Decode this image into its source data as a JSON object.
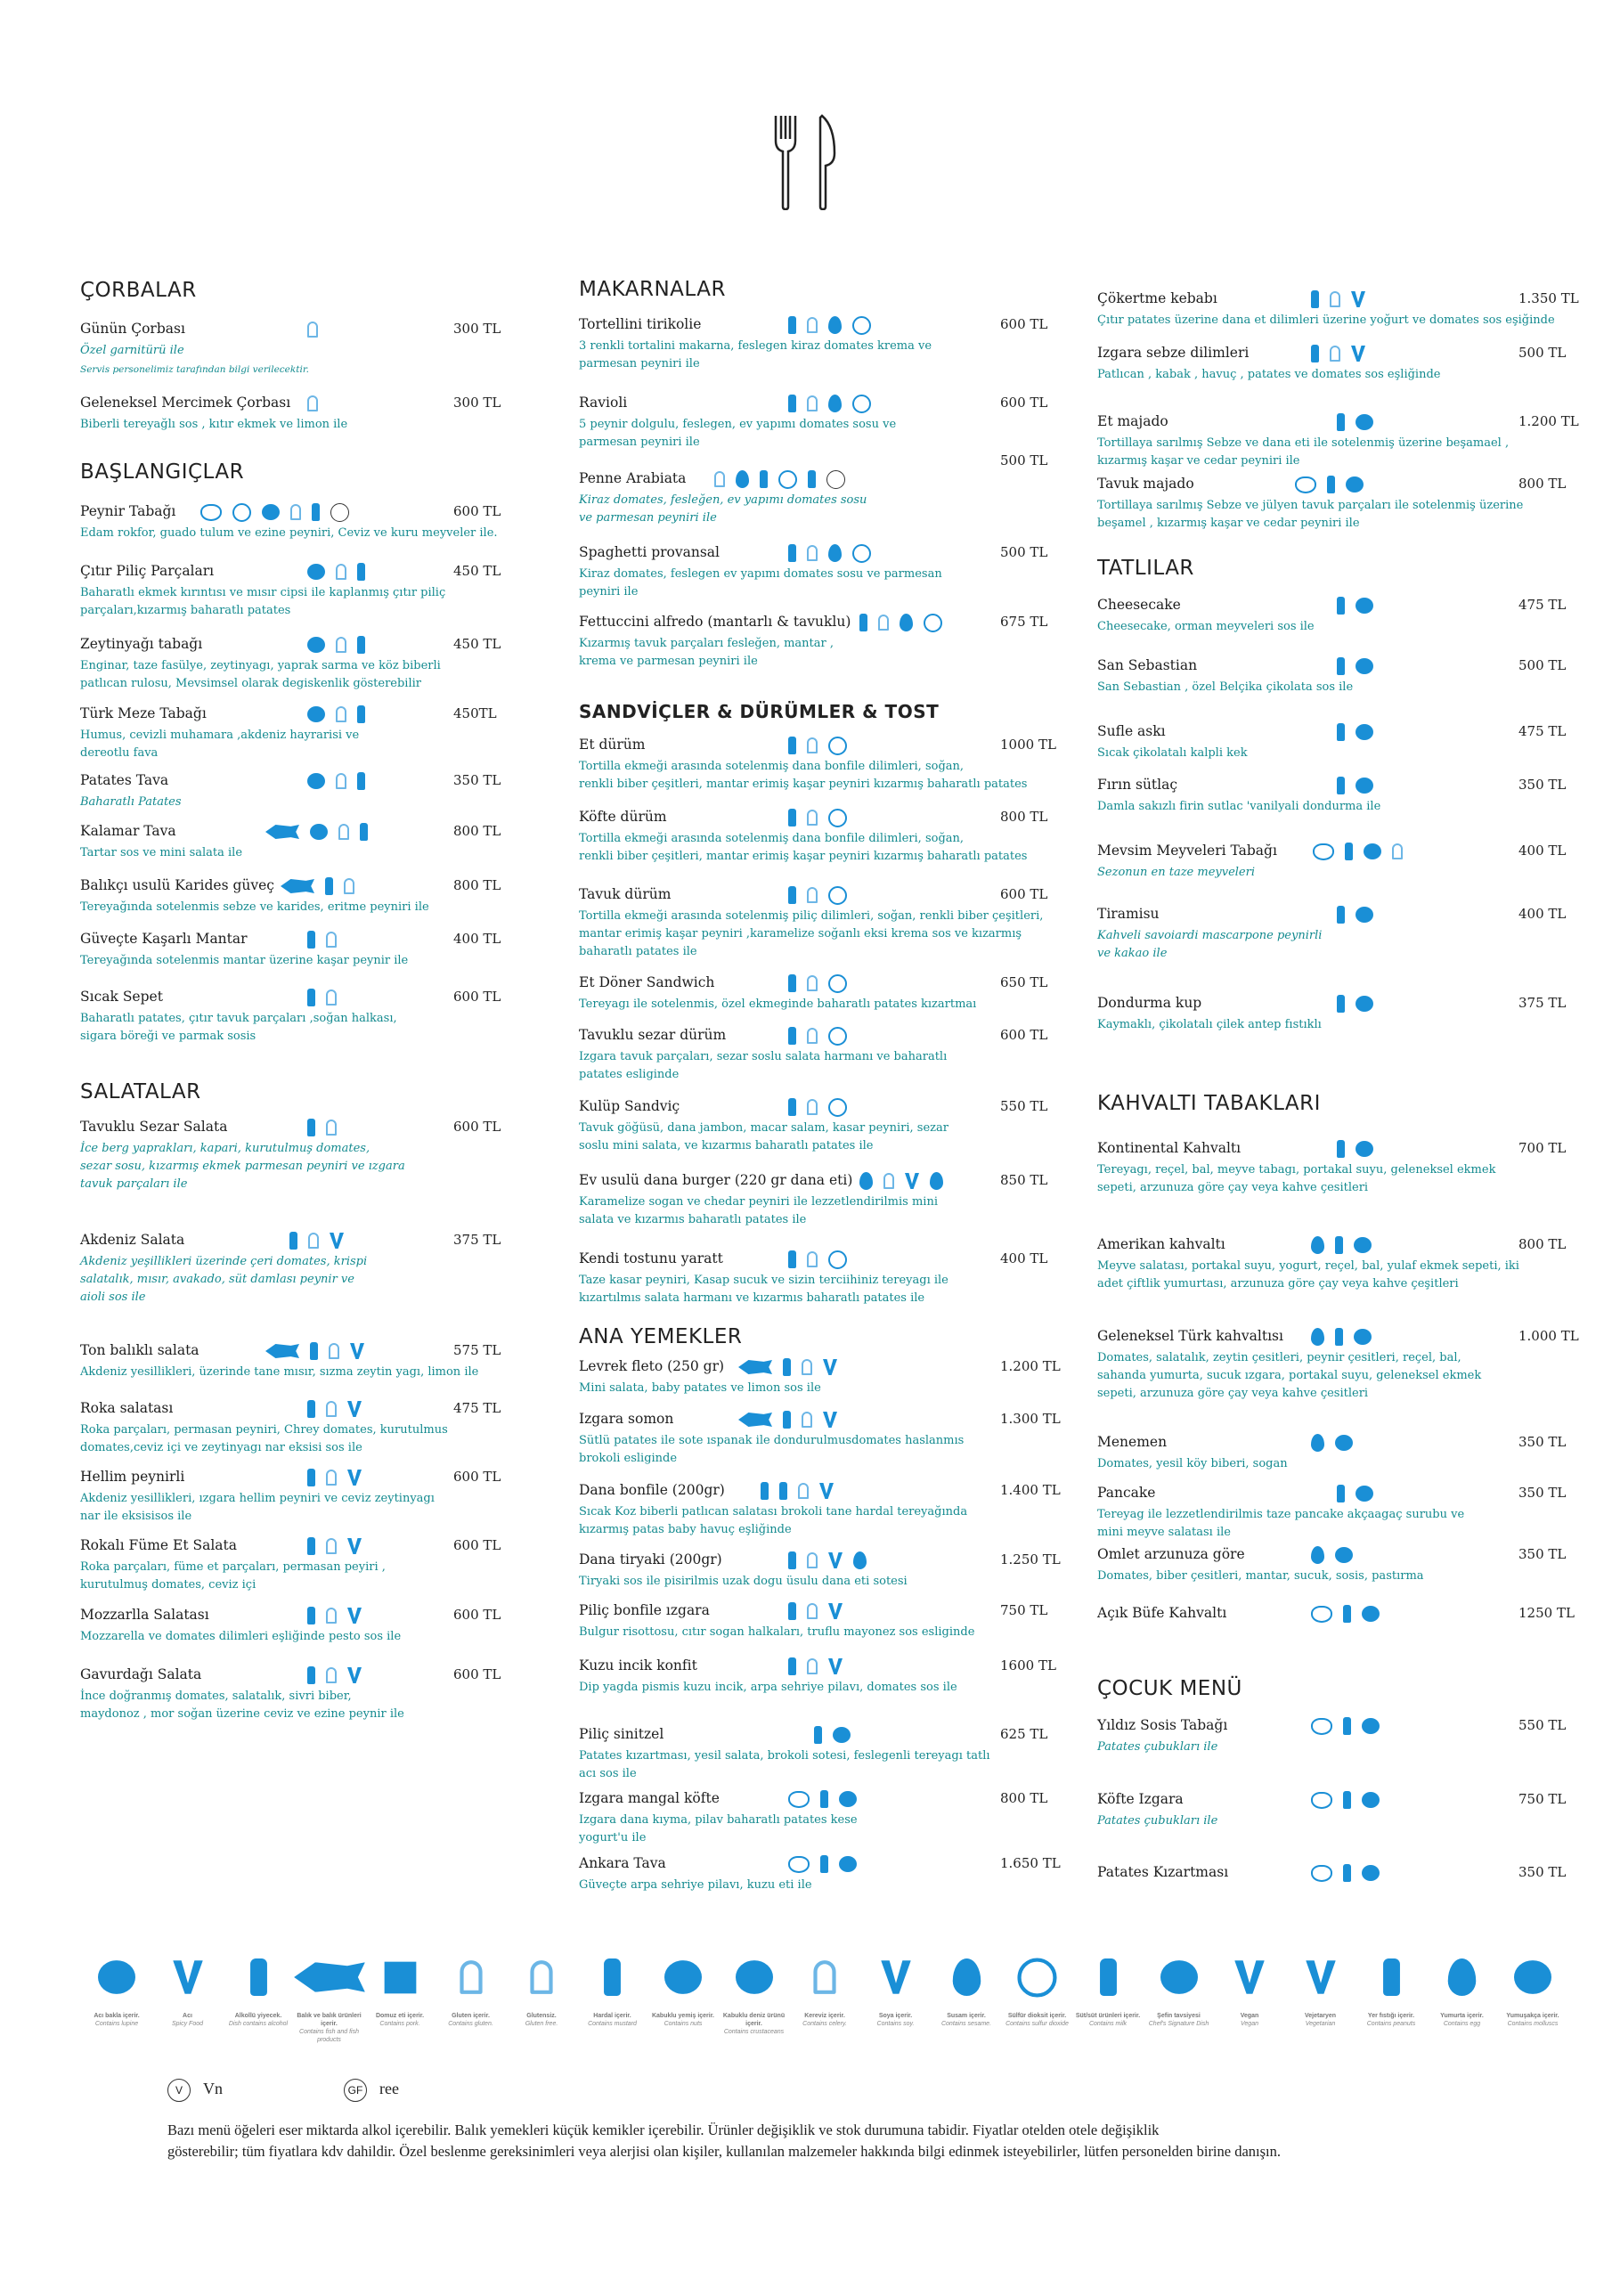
{
  "columns": [
    {
      "sections": [
        {
          "title": "ÇORBALAR",
          "items": [
            {
              "name": "Günün Çorbası",
              "price": "300 TL",
              "desc": "Özel garnitürü ile",
              "note": "Servis personelimiz tarafından bilgi verilecektir."
            },
            {
              "name": "Geleneksel Mercimek Çorbası",
              "price": "300 TL",
              "desc": "Biberli tereyağlı sos , kıtır ekmek ve limon ile"
            }
          ]
        },
        {
          "title": "BAŞLANGIÇLAR",
          "items": [
            {
              "name": "Peynir Tabağı",
              "price": "600 TL",
              "desc": "Edam rokfor, guado tulum ve ezine peyniri, Ceviz ve kuru meyveler ile."
            },
            {
              "name": "Çıtır Piliç Parçaları",
              "price": "450 TL",
              "desc": "Baharatlı ekmek kırıntısı ve mısır cipsi ile kaplanmış çıtır piliç\nparçaları,kızarmış baharatlı patates"
            },
            {
              "name": "Zeytinyağı tabağı",
              "price": "450 TL",
              "desc": "Enginar, taze fasülye, zeytinyagı, yaprak sarma ve köz biberli\npatlıcan rulosu, Mevsimsel olarak degiskenlik gösterebilir"
            },
            {
              "name": "Türk Meze Tabağı",
              "price": "450TL",
              "desc": "Humus, cevizli muhamara ,akdeniz hayrarisi ve\ndereotlu fava"
            },
            {
              "name": "Patates Tava",
              "price": "350 TL",
              "desc": "Baharatlı Patates"
            },
            {
              "name": "Kalamar Tava",
              "price": "800 TL",
              "desc": "Tartar sos ve mini salata ile"
            },
            {
              "name": "Balıkçı usulü Karides güveç",
              "price": "800 TL",
              "desc": "Tereyağında sotelenmis sebze ve karides, eritme peyniri ile"
            },
            {
              "name": "Güveçte Kaşarlı Mantar",
              "price": "400 TL",
              "desc": "Tereyağında sotelenmis mantar üzerine kaşar peynir ile"
            },
            {
              "name": "Sıcak Sepet",
              "price": "600 TL",
              "desc": "Baharatlı patates, çıtır tavuk parçaları ,soğan halkası,\nsigara böreği ve parmak sosis"
            }
          ]
        },
        {
          "title": "SALATALAR",
          "items": [
            {
              "name": "Tavuklu Sezar Salata",
              "price": "600 TL",
              "desc": "İce berg yaprakları, kapari, kurutulmuş domates,\nsezar sosu, kızarmış ekmek parmesan peyniri ve ızgara\ntavuk parçaları ile"
            },
            {
              "name": "Akdeniz Salata",
              "price": "375 TL",
              "desc": "Akdeniz yeşillikleri üzerinde çeri domates, krispi\nsalatalık, mısır, avakado, süt damlası peynir ve\naioli sos ile"
            },
            {
              "name": "Ton balıklı salata",
              "price": "575 TL",
              "desc": "Akdeniz yesillikleri, üzerinde tane mısır, sızma zeytin yagı, limon ile"
            },
            {
              "name": "Roka salatası",
              "price": "475 TL",
              "desc": "Roka parçaları, permasan peyniri, Chrey domates, kurutulmus\ndomates,ceviz içi ve zeytinyagı nar eksisi sos ile"
            },
            {
              "name": "Hellim peynirli",
              "price": "600 TL",
              "desc": "Akdeniz yesillikleri, ızgara hellim peyniri ve ceviz zeytinyagı\nnar ile eksisisos ile"
            },
            {
              "name": "Rokalı Füme Et Salata",
              "price": "600 TL",
              "desc": "Roka parçaları, füme et parçaları, permasan peyiri ,\nkurutulmuş domates, ceviz içi"
            },
            {
              "name": "Mozzarlla Salatası",
              "price": "600 TL",
              "desc": "Mozzarella ve domates dilimleri eşliğinde pesto sos ile"
            },
            {
              "name": "Gavurdağı Salata",
              "price": "600 TL",
              "desc": "İnce doğranmış domates, salatalık, sivri biber,\nmaydonoz , mor soğan üzerine ceviz ve ezine peynir ile"
            }
          ]
        }
      ]
    },
    {
      "sections": [
        {
          "title": "MAKARNALAR",
          "items": [
            {
              "name": "Tortellini tirikolie",
              "price": "600 TL",
              "desc": "3 renkli tortalini makarna, feslegen kiraz domates krema ve\nparmesan peyniri ile"
            },
            {
              "name": "Ravioli",
              "price": "600 TL",
              "desc": "5 peynir dolgulu, feslegen, ev yapımı domates sosu ve\nparmesan peyniri ile"
            },
            {
              "name": "Penne Arabiata",
              "price": "500 TL",
              "desc": "Kiraz domates, fesleğen, ev yapımı domates sosu\nve parmesan peyniri ile"
            },
            {
              "name": "Spaghetti provansal",
              "price": "500 TL",
              "desc": "Kiraz domates, feslegen ev yapımı domates sosu ve parmesan\npeyniri ile"
            },
            {
              "name": "Fettuccini alfredo (mantarlı & tavuklu)",
              "price": "675 TL",
              "desc": "Kızarmış tavuk parçaları fesleğen, mantar ,\nkrema ve parmesan peyniri ile"
            }
          ]
        },
        {
          "title": "SANDVİÇLER & DÜRÜMLER & TOST",
          "items": [
            {
              "name": "Et dürüm",
              "price": "1000 TL",
              "desc": "Tortilla ekmeği arasında sotelenmiş dana bonfile dilimleri, soğan,\nrenkli biber çeşitleri, mantar erimiş kaşar peyniri kızarmış  baharatlı patates"
            },
            {
              "name": "Köfte  dürüm",
              "price": "800 TL",
              "desc": "Tortilla ekmeği arasında sotelenmiş dana bonfile dilimleri, soğan,\n renkli biber çeşitleri, mantar erimiş kaşar peyniri kızarmış  baharatlı patates"
            },
            {
              "name": "Tavuk  dürüm",
              "price": "600 TL",
              "desc": "Tortilla ekmeği arasında sotelenmiş piliç dilimleri, soğan, renkli biber çeşitleri,\nmantar erimiş kaşar peyniri ,karamelize soğanlı eksi krema sos ve kızarmış\nbaharatlı patates ile"
            },
            {
              "name": "Et Döner Sandwich",
              "price": "650 TL",
              "desc": "Tereyagı ile sotelenmis, özel ekmeginde baharatlı patates kızartmaı"
            },
            {
              "name": "Tavuklu sezar dürüm",
              "price": "600 TL",
              "desc": "Izgara tavuk parçaları, sezar soslu salata harmanı ve baharatlı\npatates esliginde"
            },
            {
              "name": "Kulüp Sandviç",
              "price": "550 TL",
              "desc": "Tavuk göğüsü, dana jambon, macar salam, kasar peyniri, sezar\nsoslu mini salata, ve kızarmıs baharatlı patates ile"
            },
            {
              "name": "Ev usulü dana burger (220 gr dana eti)",
              "price": "850 TL",
              "desc": "Karamelize sogan ve chedar peyniri ile lezzetlendirilmis  mini\nsalata ve kızarmıs baharatlı patates ile"
            },
            {
              "name": "Kendi tostunu yaratt",
              "price": "400 TL",
              "desc": "Taze kasar peyniri, Kasap sucuk ve sizin terciihiniz tereyagı ile\nkızartılmıs salata harmanı ve kızarmıs baharatlı patates ile"
            }
          ]
        },
        {
          "title": "ANA YEMEKLER",
          "items": [
            {
              "name": "Levrek fleto (250 gr)",
              "price": "1.200 TL",
              "desc": "Mini salata, baby patates ve limon sos ile"
            },
            {
              "name": "Izgara somon",
              "price": "1.300 TL",
              "desc": "Sütlü patates ile sote ıspanak ile dondurulmusdomates haslanmıs\nbrokoli esliginde"
            },
            {
              "name": "Dana bonfile (200gr)",
              "price": "1.400 TL",
              "desc": "Sıcak Koz biberli patlıcan salatası  brokoli tane hardal tereyağında\nkızarmış patas baby havuç eşliğinde"
            },
            {
              "name": "Dana tiryaki (200gr)",
              "price": "1.250 TL",
              "desc": "Tiryaki sos ile pisirilmis uzak dogu üsulu dana eti sotesi"
            },
            {
              "name": "Piliç bonfile ızgara",
              "price": "750 TL",
              "desc": "Bulgur risottosu, cıtır sogan halkaları, truflu mayonez sos esliginde"
            },
            {
              "name": "Kuzu incik konfit",
              "price": "1600 TL",
              "desc": "Dip yagda pismis kuzu incik, arpa sehriye pilavı, domates sos ile"
            },
            {
              "name": "Piliç sinitzel",
              "price": "625 TL",
              "desc": "Patates kızartması, yesil salata, brokoli sotesi, feslegenli tereyagı tatlı\nacı sos ile"
            },
            {
              "name": "Izgara mangal köfte",
              "price": "800 TL",
              "desc": "Izgara dana kıyma, pilav baharatlı patates kese\nyogurt'u ile"
            },
            {
              "name": "Ankara Tava",
              "price": "1.650 TL",
              "desc": "Güveçte arpa sehriye pilavı, kuzu eti ile"
            }
          ]
        }
      ]
    },
    {
      "sections": [
        {
          "items": [
            {
              "name": "Çökertme kebabı",
              "price": "1.350 TL",
              "desc": "Çıtır patates üzerine dana et dilimleri üzerine yoğurt ve domates sos eşiğinde"
            },
            {
              "name": "Izgara sebze dilimleri",
              "price": "500 TL",
              "desc": "Patlıcan , kabak , havuç , patates ve domates sos eşliğinde"
            },
            {
              "name": "Et majado",
              "price": "1.200 TL",
              "desc": "Tortillaya sarılmış Sebze ve dana eti ile sotelenmiş üzerine beşamael ,\nkızarmış kaşar ve cedar peyniri ile"
            },
            {
              "name": "Tavuk  majado",
              "price": "800 TL",
              "desc": "Tortillaya sarılmış Sebze ve jülyen tavuk parçaları ile sotelenmiş üzerine\n beşamel , kızarmış kaşar ve cedar peyniri ile"
            }
          ]
        },
        {
          "title": "TATLILAR",
          "items": [
            {
              "name": "Cheesecake",
              "price": "475 TL",
              "desc": "Cheesecake, orman meyveleri sos ile"
            },
            {
              "name": "San Sebastian",
              "price": "500 TL",
              "desc": "San Sebastian , özel Belçika çikolata sos ile"
            },
            {
              "name": "Sufle askı",
              "price": "475 TL",
              "desc": "Sıcak çikolatalı kalpli kek"
            },
            {
              "name": "Fırın sütlaç",
              "price": "350 TL",
              "desc": "Damla sakızlı firin sutlac 'vanilyali  dondurma ile"
            },
            {
              "name": "Mevsim Meyveleri Tabağı",
              "price": "400 TL",
              "desc": "Sezonun en taze meyveleri"
            },
            {
              "name": "Tiramisu",
              "price": "400 TL",
              "desc": "Kahveli savoiardi mascarpone peynirli\nve kakao ile"
            },
            {
              "name": "Dondurma kup",
              "price": "375 TL",
              "desc": "Kaymaklı, çikolatalı çilek antep fıstıklı"
            }
          ]
        },
        {
          "title": "KAHVALTI TABAKLARI",
          "items": [
            {
              "name": "Kontinental Kahvaltı",
              "price": "700 TL",
              "desc": "Tereyagı, reçel, bal, meyve tabagı, portakal suyu, geleneksel ekmek\nsepeti, arzunuza göre çay veya kahve çesitleri"
            },
            {
              "name": "Amerikan kahvaltı",
              "price": "800 TL",
              "desc": "Meyve salatası, portakal suyu, yogurt, reçel, bal, yulaf ekmek sepeti, iki\nadet çiftlik yumurtası, arzunuza göre çay veya kahve çeşitleri"
            },
            {
              "name": "Geleneksel Türk kahvaltısı",
              "price": "1.000 TL",
              "desc": "Domates, salatalık, zeytin çesitleri, peynir çesitleri, reçel, bal,\nsahanda yumurta, sucuk ızgara, portakal suyu, geleneksel ekmek\nsepeti, arzunuza göre çay veya kahve çesitleri"
            },
            {
              "name": "Menemen",
              "price": "350 TL",
              "desc": "Domates, yesil köy biberi, sogan"
            },
            {
              "name": "Pancake",
              "price": "350 TL",
              "desc": "Tereyag ile lezzetlendirilmis taze pancake akçaagaç surubu ve\nmini meyve salatası ile"
            },
            {
              "name": "Omlet arzunuza göre",
              "price": "350 TL",
              "desc": "Domates, biber çesitleri, mantar, sucuk, sosis, pastırma"
            },
            {
              "name": "Açık Büfe Kahvaltı",
              "price": "1250 TL"
            }
          ]
        },
        {
          "title": "ÇOCUK MENÜ",
          "items": [
            {
              "name": "Yıldız Sosis Tabağı",
              "price": "550 TL",
              "desc": "Patates çubukları ile"
            },
            {
              "name": "Köfte Izgara",
              "price": "750 TL",
              "desc": "Patates çubukları ile"
            },
            {
              "name": "Patates Kızartması",
              "price": "350 TL"
            }
          ]
        }
      ]
    }
  ],
  "legend": [
    {
      "tr": "Acı bakla içerir.",
      "en": "Contains lupine"
    },
    {
      "tr": "Acı",
      "en": "Spicy Food"
    },
    {
      "tr": "Alkollü yiyecek.",
      "en": "Dish contains alcohol"
    },
    {
      "tr": "Balık ve balık ürünleri içerir.",
      "en": "Contains fish and fish products"
    },
    {
      "tr": "Domuz eti içerir.",
      "en": "Contains pork."
    },
    {
      "tr": "Gluten içerir.",
      "en": "Contains gluten."
    },
    {
      "tr": "Glutensiz.",
      "en": "Gluten free."
    },
    {
      "tr": "Hardal içerir.",
      "en": "Contains mustard"
    },
    {
      "tr": "Kabuklu yemiş içerir.",
      "en": "Contains nuts"
    },
    {
      "tr": "Kabuklu deniz ürünü içerir.",
      "en": "Contains crustaceans"
    },
    {
      "tr": "Kereviz içerir.",
      "en": "Contains celery."
    },
    {
      "tr": "Soya içerir.",
      "en": "Contains soy."
    },
    {
      "tr": "Susam içerir.",
      "en": "Contains sesame."
    },
    {
      "tr": "Sülfür dioksit içerir.",
      "en": "Contains sulfur dioxide"
    },
    {
      "tr": "Süt/süt ürünleri içerir.",
      "en": "Contains milk"
    },
    {
      "tr": "Şefin tavsiyesi",
      "en": "Chef's Signature Dish"
    },
    {
      "tr": "Vegan",
      "en": "Vegan"
    },
    {
      "tr": "Vejetaryen",
      "en": "Vegetarian"
    },
    {
      "tr": "Yer fıstığı içerir.",
      "en": "Contains peanuts"
    },
    {
      "tr": "Yumurta içerir.",
      "en": "Contains egg"
    },
    {
      "tr": "Yumuşakça içerir.",
      "en": "Contains molluscs"
    }
  ],
  "badges": [
    {
      "symbol": "V",
      "label": "Vn"
    },
    {
      "symbol": "GF",
      "label": "ree"
    }
  ],
  "footnote": "Bazı menü öğeleri eser miktarda alkol içerebilir. Balık yemekleri küçük kemikler içerebilir. Ürünler değişiklik ve stok durumuna tabidir. Fiyatlar otelden otele değişiklik\ngösterebilir; tüm fiyatlara kdv dahildir.  Özel beslenme gereksinimleri veya alerjisi olan kişiler, kullanılan malzemeler hakkında bilgi edinmek isteyebilirler, lütfen personelden birine danışın."
}
